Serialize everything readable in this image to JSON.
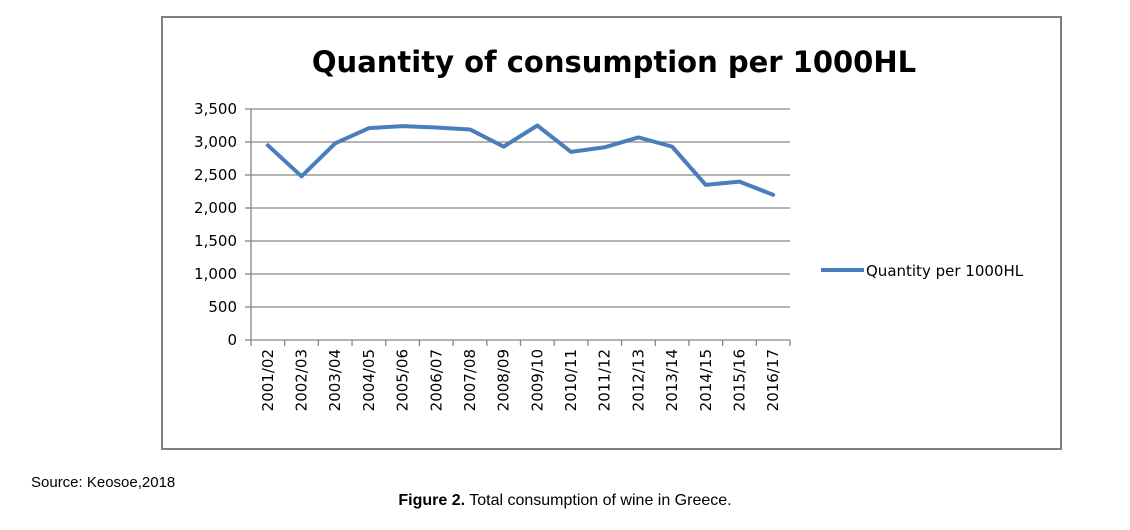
{
  "chart_data": {
    "type": "line",
    "title": "Quantity of consumption per 1000HL",
    "xlabel": "",
    "ylabel": "",
    "categories": [
      "2001/02",
      "2002/03",
      "2003/04",
      "2004/05",
      "2005/06",
      "2006/07",
      "2007/08",
      "2008/09",
      "2009/10",
      "2010/11",
      "2011/12",
      "2012/13",
      "2013/14",
      "2014/15",
      "2015/16",
      "2016/17"
    ],
    "series": [
      {
        "name": "Quantity per 1000HL",
        "color": "#4a7ebb",
        "values": [
          2950,
          2480,
          2980,
          3210,
          3240,
          3220,
          3190,
          2930,
          3250,
          2850,
          2920,
          3070,
          2930,
          2350,
          2400,
          2200
        ]
      }
    ],
    "ylim": [
      0,
      3500
    ],
    "yticks": [
      0,
      500,
      1000,
      1500,
      2000,
      2500,
      3000,
      3500
    ],
    "ytick_labels": [
      "0",
      "500",
      "1,000",
      "1,500",
      "2,000",
      "2,500",
      "3,000",
      "3,500"
    ],
    "grid": true,
    "legend_position": "right"
  },
  "source": "Source: Keosoe,2018",
  "caption": {
    "label": "Figure 2.",
    "text": " Total consumption of wine in Greece."
  }
}
